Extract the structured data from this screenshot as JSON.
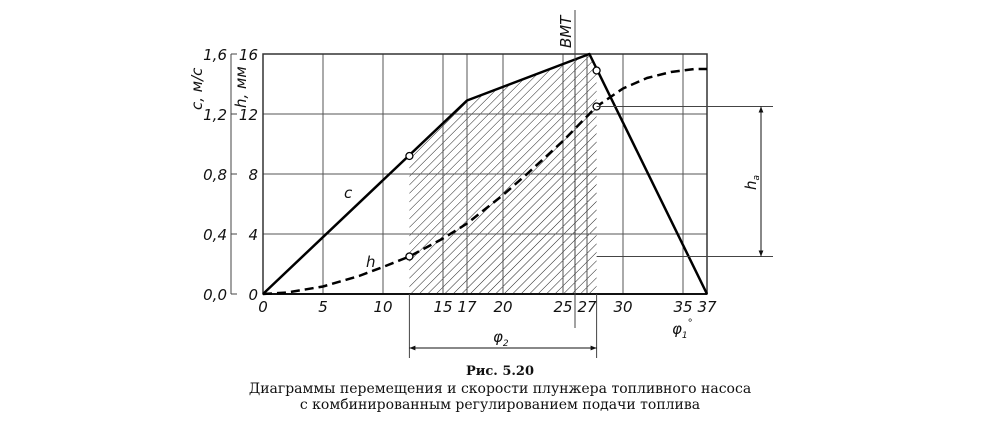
{
  "caption": {
    "figure_number": "Рис. 5.20",
    "line1": "Диаграммы перемещения и скорости плунжера топливного насоса",
    "line2": "с комбинированным регулированием подачи топлива"
  },
  "chart_data": {
    "type": "line",
    "title": "Диаграммы перемещения и скорости плунжера топливного насоса с комбинированным регулированием подачи топлива",
    "xlabel": "φ1°",
    "ylabel_left_outer": "c, м/с",
    "ylabel_left_inner": "h, мм",
    "xlim": [
      0,
      37
    ],
    "ylim_h": [
      0,
      16
    ],
    "ylim_c": [
      0,
      1.6
    ],
    "grid": true,
    "x_ticks": [
      0,
      5,
      10,
      15,
      17,
      20,
      25,
      27,
      30,
      35,
      37
    ],
    "x_tick_labels": [
      "0",
      "5",
      "10",
      "15",
      "17",
      "20",
      "25",
      "27",
      "30",
      "35",
      "37"
    ],
    "h_ticks": [
      0,
      4,
      8,
      12,
      16
    ],
    "h_tick_labels": [
      "0",
      "4",
      "8",
      "12",
      "16"
    ],
    "c_ticks": [
      0.0,
      0.4,
      0.8,
      1.2,
      1.6
    ],
    "c_tick_labels": [
      "0,0",
      "0,4",
      "0,8",
      "1,2",
      "1,6"
    ],
    "series": [
      {
        "name": "c",
        "label": "c",
        "style": "solid",
        "unit": "м/с",
        "x": [
          0,
          17,
          27.2,
          37
        ],
        "values": [
          0.0,
          1.29,
          1.6,
          0.0
        ]
      },
      {
        "name": "h",
        "label": "h",
        "style": "dashed",
        "unit": "мм",
        "x": [
          0,
          2,
          5,
          8,
          10,
          12.2,
          15,
          17,
          20,
          22,
          25,
          27.8,
          30,
          32,
          34,
          36,
          37
        ],
        "values": [
          0,
          0.1,
          0.5,
          1.2,
          1.8,
          2.5,
          3.7,
          4.7,
          6.6,
          8.0,
          10.2,
          12.5,
          13.7,
          14.4,
          14.8,
          15.0,
          15.0
        ]
      }
    ],
    "annotations": {
      "tdc_label": "ВМТ",
      "tdc_x": 26.0,
      "hatched_region": {
        "x_start": 12.2,
        "x_end": 27.8,
        "label": "φ2"
      },
      "markers": [
        {
          "series": "c",
          "x": 12.2,
          "value": 0.92
        },
        {
          "series": "h",
          "x": 12.2,
          "value": 2.5
        },
        {
          "series": "c",
          "x": 27.8,
          "value": 1.49
        },
        {
          "series": "h",
          "x": 27.8,
          "value": 12.5
        }
      ],
      "active_stroke": {
        "label": "ha",
        "h_from": 2.5,
        "h_to": 12.5
      }
    }
  }
}
